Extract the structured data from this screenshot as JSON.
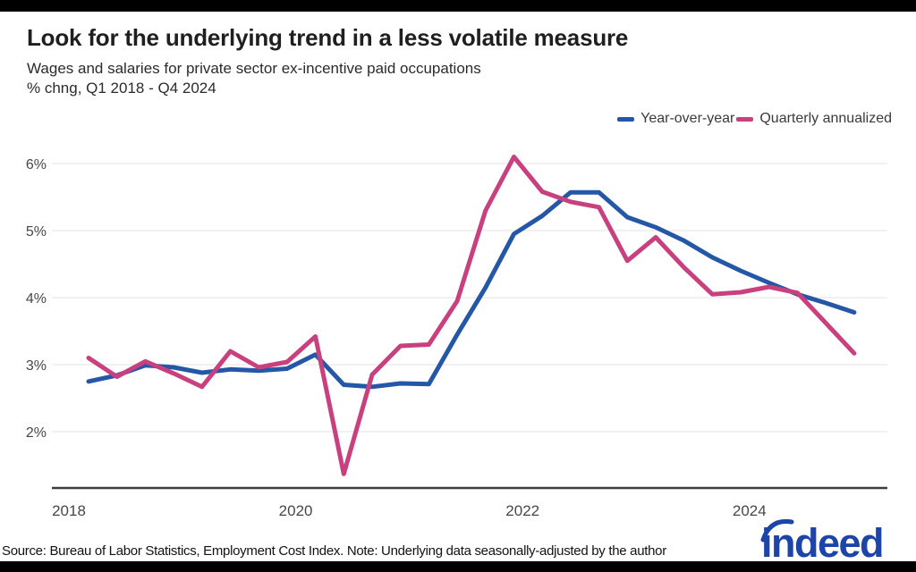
{
  "page": {
    "top_bar_color": "#000000",
    "bottom_bar_color": "#000000",
    "background": "#ffffff"
  },
  "header": {
    "title": "Look for the underlying trend in a less volatile measure",
    "subtitle_line1": "Wages and salaries for private sector ex-incentive paid occupations",
    "subtitle_line2": "% chng, Q1 2018 - Q4 2024"
  },
  "legend": [
    {
      "label": "Year-over-year",
      "color": "#2557a7"
    },
    {
      "label": "Quarterly annualized",
      "color": "#c9407f"
    }
  ],
  "footer": {
    "source_note": "Source: Bureau of Labor Statistics, Employment Cost Index. Note: Underlying data seasonally-adjusted by the author",
    "logo_text": "indeed",
    "logo_color": "#1d44a8"
  },
  "chart_data": {
    "type": "line",
    "title": "Look for the underlying trend in a less volatile measure",
    "subtitle": "Wages and salaries for private sector ex-incentive paid occupations, % chng, Q1 2018 - Q4 2024",
    "xlabel": "",
    "ylabel": "% change",
    "grid": "horizontal",
    "gridline_color": "#e3e3e3",
    "axis_line_color": "#3d3d3d",
    "tick_label_color": "#474747",
    "ylim": [
      1.2,
      6.2
    ],
    "y_ticks": [
      6,
      5,
      4,
      3,
      2
    ],
    "y_tick_labels": [
      "6%",
      "5%",
      "4%",
      "3%",
      "2%"
    ],
    "x_tick_labels": [
      "2018",
      "2020",
      "2022",
      "2024"
    ],
    "categories": [
      "Q1 2018",
      "Q2 2018",
      "Q3 2018",
      "Q4 2018",
      "Q1 2019",
      "Q2 2019",
      "Q3 2019",
      "Q4 2019",
      "Q1 2020",
      "Q2 2020",
      "Q3 2020",
      "Q4 2020",
      "Q1 2021",
      "Q2 2021",
      "Q3 2021",
      "Q4 2021",
      "Q1 2022",
      "Q2 2022",
      "Q3 2022",
      "Q4 2022",
      "Q1 2023",
      "Q2 2023",
      "Q3 2023",
      "Q4 2023",
      "Q1 2024",
      "Q2 2024",
      "Q3 2024",
      "Q4 2024"
    ],
    "series": [
      {
        "name": "Year-over-year",
        "color": "#2557a7",
        "values": [
          2.75,
          2.84,
          2.99,
          2.96,
          2.88,
          2.93,
          2.91,
          2.94,
          3.15,
          2.7,
          2.67,
          2.72,
          2.71,
          3.45,
          4.15,
          4.95,
          5.22,
          5.57,
          5.57,
          5.2,
          5.05,
          4.85,
          4.6,
          4.4,
          4.22,
          4.05,
          3.92,
          3.78
        ]
      },
      {
        "name": "Quarterly annualized",
        "color": "#c9407f",
        "values": [
          3.1,
          2.82,
          3.05,
          2.87,
          2.67,
          3.2,
          2.96,
          3.04,
          3.42,
          1.37,
          2.85,
          3.28,
          3.3,
          3.95,
          5.3,
          6.1,
          5.58,
          5.43,
          5.35,
          4.55,
          4.9,
          4.45,
          4.05,
          4.08,
          4.16,
          4.07,
          3.62,
          3.17
        ]
      }
    ],
    "legend_position": "top-right"
  }
}
